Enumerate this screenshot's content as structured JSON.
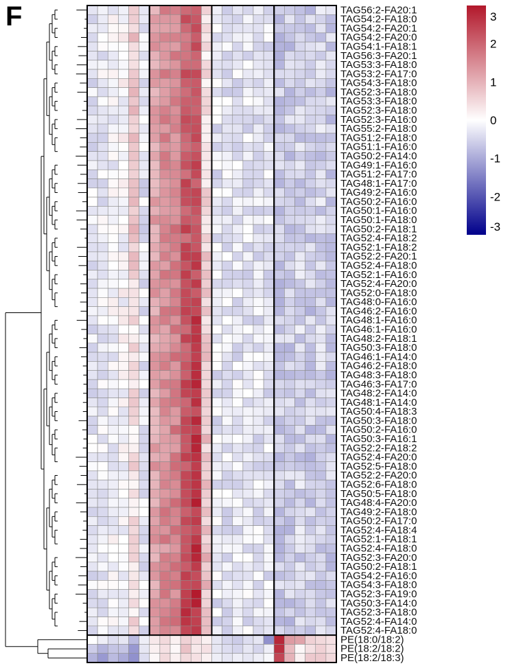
{
  "panel_letter": "F",
  "colors": {
    "low": "#00008B",
    "mid": "#FFFFFF",
    "high": "#B2182B",
    "cell_border": "#8c8c8c",
    "group_border": "#000000"
  },
  "chart_data": {
    "type": "heatmap",
    "title": "",
    "xlabel": "",
    "ylabel": "",
    "color_scale": {
      "min": -3,
      "max": 3,
      "ticks": [
        3,
        2,
        1,
        0,
        -1,
        -2,
        -3
      ]
    },
    "column_groups": 4,
    "columns_per_group": 6,
    "row_labels_visible": [
      "TAG56:2-FA20:1",
      "TAG54:2-FA18:0",
      "TAG54:2-FA20:1",
      "TAG54:2-FA20:0",
      "TAG54:1-FA18:1",
      "TAG56:3-FA20:1",
      "TAG53:3-FA18:0",
      "TAG53:2-FA17:0",
      "TAG54:3-FA18:0",
      "TAG52:3-FA18:0",
      "TAG53:3-FA18:0",
      "TAG52:3-FA18:0",
      "TAG52:3-FA16:0",
      "TAG55:2-FA18:0",
      "TAG51:2-FA18:0",
      "TAG51:1-FA16:0",
      "TAG50:2-FA14:0",
      "TAG49:1-FA16:0",
      "TAG51:2-FA17:0",
      "TAG48:1-FA17:0",
      "TAG49:2-FA16:0",
      "TAG50:2-FA16:0",
      "TAG50:1-FA16:0",
      "TAG50:1-FA18:0",
      "TAG50:2-FA18:1",
      "TAG52:4-FA18:2",
      "TAG52:1-FA18:2",
      "TAG52:2-FA20:1",
      "TAG52:4-FA18:0",
      "TAG52:1-FA16:0",
      "TAG52:4-FA20:0",
      "TAG52:0-FA18:0",
      "TAG48:0-FA16:0",
      "TAG46:2-FA16:0",
      "TAG48:1-FA16:0",
      "TAG46:1-FA16:0",
      "TAG48:2-FA18:1",
      "TAG50:3-FA18:0",
      "TAG46:1-FA14:0",
      "TAG46:2-FA18:0",
      "TAG48:3-FA18:0",
      "TAG46:3-FA17:0",
      "TAG48:2-FA14:0",
      "TAG48:1-FA14:0",
      "TAG50:4-FA18:3",
      "TAG50:3-FA18:0",
      "TAG50:2-FA16:0",
      "TAG50:3-FA16:1",
      "TAG52:2-FA18:2",
      "TAG52:4-FA20:0",
      "TAG52:5-FA18:0",
      "TAG52:2-FA20:0",
      "TAG52:6-FA18:0",
      "TAG50:5-FA18:0",
      "TAG48:4-FA20:0",
      "TAG49:2-FA18:0",
      "TAG50:2-FA17:0",
      "TAG52:4-FA18:4",
      "TAG52:1-FA18:1",
      "TAG52:4-FA18:0",
      "TAG52:3-FA20:0",
      "TAG50:2-FA18:1",
      "TAG54:2-FA16:0",
      "TAG54:3-FA18:0",
      "TAG52:3-FA19:0",
      "TAG50:3-FA14:0",
      "TAG52:3-FA18:0",
      "TAG52:4-FA14:0",
      "TAG52:4-FA18:0",
      "PE(18:0/18:2)",
      "PE(18:2/18:2)",
      "PE(18:2/18:3)"
    ],
    "rows_tag_block": 69,
    "rows_bottom_block": 3,
    "cluster_profile_tag": {
      "note": "approximate z-scores read from color",
      "group1": [
        -0.3,
        -0.2,
        -0.1,
        0.0,
        0.4,
        -0.3
      ],
      "group2": [
        1.2,
        1.5,
        1.6,
        2.0,
        2.2,
        0.4
      ],
      "group3": [
        -0.3,
        -0.3,
        -0.3,
        -0.3,
        -0.3,
        -0.3
      ],
      "group4": [
        -0.6,
        -0.6,
        -0.5,
        -0.6,
        -0.5,
        -0.6
      ]
    },
    "bottom_rows_values": [
      [
        0.0,
        -0.2,
        -0.4,
        -0.3,
        -0.8,
        -0.2,
        0.3,
        0.5,
        0.2,
        0.6,
        0.4,
        0.2,
        -0.3,
        -0.5,
        -0.6,
        -0.4,
        -0.3,
        -1.3,
        2.8,
        1.3,
        1.2,
        0.6,
        0.5,
        0.4
      ],
      [
        -0.6,
        -0.9,
        -0.7,
        -0.7,
        -1.2,
        -0.3,
        0.2,
        0.4,
        0.1,
        0.8,
        0.3,
        0.4,
        -0.3,
        -0.4,
        -0.5,
        -0.3,
        -0.5,
        -0.2,
        2.7,
        0.9,
        0.1,
        0.4,
        0.6,
        0.4
      ],
      [
        -0.9,
        -1.2,
        -0.8,
        -1.0,
        -1.3,
        -0.4,
        0.1,
        0.5,
        0.2,
        0.5,
        0.4,
        0.2,
        -0.2,
        -0.3,
        -0.2,
        -0.3,
        -0.2,
        -0.1,
        2.4,
        1.0,
        0.2,
        0.7,
        0.7,
        0.5
      ]
    ]
  }
}
